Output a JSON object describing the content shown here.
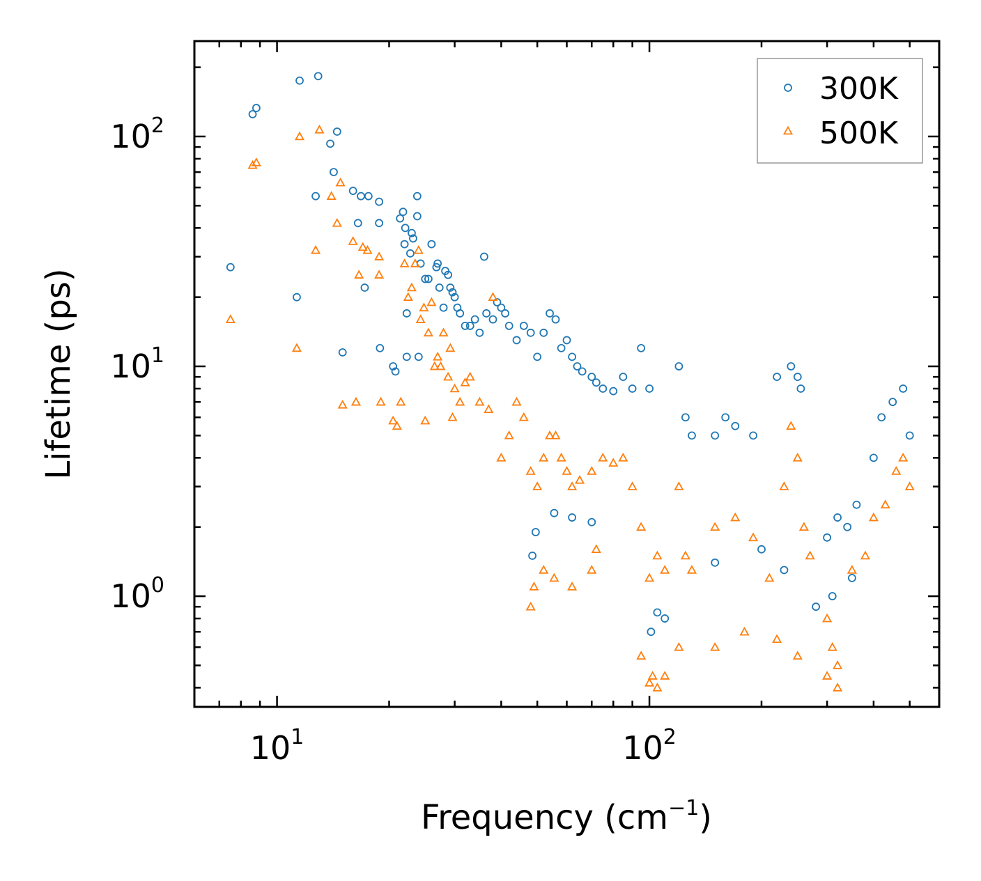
{
  "chart_data": {
    "type": "scatter",
    "title": "",
    "xlabel": "Frequency (cm",
    "xlabel_sup": "−1",
    "xlabel_suffix": ")",
    "ylabel": "Lifetime (ps)",
    "xscale": "log",
    "yscale": "log",
    "xlim": [
      6,
      600
    ],
    "ylim": [
      0.33,
      260
    ],
    "x_ticks": [
      {
        "value": 10,
        "base": "10",
        "exp": "1"
      },
      {
        "value": 100,
        "base": "10",
        "exp": "2"
      }
    ],
    "y_ticks": [
      {
        "value": 1,
        "base": "10",
        "exp": "0"
      },
      {
        "value": 10,
        "base": "10",
        "exp": "1"
      },
      {
        "value": 100,
        "base": "10",
        "exp": "2"
      }
    ],
    "legend_position": "top-right",
    "series": [
      {
        "name": "300K",
        "marker": "circle",
        "color": "#1f77b4",
        "points": [
          [
            7.5,
            27
          ],
          [
            8.6,
            125
          ],
          [
            8.8,
            133
          ],
          [
            11.5,
            175
          ],
          [
            12.9,
            183
          ],
          [
            13.9,
            93
          ],
          [
            14.2,
            70
          ],
          [
            14.5,
            105
          ],
          [
            11.3,
            20
          ],
          [
            12.7,
            55
          ],
          [
            15.0,
            11.5
          ],
          [
            16.0,
            58
          ],
          [
            16.5,
            42
          ],
          [
            16.8,
            55
          ],
          [
            17.2,
            22
          ],
          [
            17.6,
            55
          ],
          [
            18.8,
            52
          ],
          [
            18.8,
            42
          ],
          [
            18.9,
            12
          ],
          [
            20.5,
            10
          ],
          [
            20.8,
            9.5
          ],
          [
            21.4,
            44
          ],
          [
            21.8,
            47
          ],
          [
            22.1,
            40
          ],
          [
            22.0,
            34
          ],
          [
            22.3,
            17
          ],
          [
            22.3,
            11
          ],
          [
            22.8,
            31
          ],
          [
            23.0,
            38
          ],
          [
            23.2,
            36
          ],
          [
            23.8,
            55
          ],
          [
            23.8,
            45
          ],
          [
            24.0,
            11
          ],
          [
            24.3,
            28
          ],
          [
            25.0,
            24
          ],
          [
            25.5,
            24
          ],
          [
            26.0,
            34
          ],
          [
            26.8,
            27
          ],
          [
            27.0,
            28
          ],
          [
            27.3,
            22
          ],
          [
            28.0,
            18
          ],
          [
            28.3,
            26
          ],
          [
            28.8,
            25
          ],
          [
            29.2,
            22
          ],
          [
            29.6,
            21
          ],
          [
            30.0,
            20
          ],
          [
            30.5,
            18
          ],
          [
            31.0,
            17
          ],
          [
            32.0,
            15
          ],
          [
            33.0,
            15
          ],
          [
            34.0,
            16
          ],
          [
            35.0,
            14
          ],
          [
            36.0,
            30
          ],
          [
            36.5,
            17
          ],
          [
            38.0,
            16
          ],
          [
            39.0,
            19
          ],
          [
            40.0,
            18
          ],
          [
            41.0,
            17
          ],
          [
            42.0,
            15
          ],
          [
            44.0,
            13
          ],
          [
            46.0,
            15
          ],
          [
            48.0,
            14
          ],
          [
            50.0,
            11
          ],
          [
            52.0,
            14
          ],
          [
            54.0,
            17
          ],
          [
            56.0,
            16
          ],
          [
            58.0,
            12
          ],
          [
            60.0,
            13
          ],
          [
            62.0,
            11
          ],
          [
            64.0,
            10
          ],
          [
            66.0,
            9.5
          ],
          [
            70.0,
            9
          ],
          [
            72.0,
            8.5
          ],
          [
            75.0,
            8
          ],
          [
            80.0,
            7.8
          ],
          [
            85.0,
            9
          ],
          [
            90.0,
            8
          ],
          [
            95.0,
            12
          ],
          [
            100.0,
            8
          ],
          [
            120.0,
            10
          ],
          [
            125.0,
            6
          ],
          [
            130.0,
            5
          ],
          [
            150.0,
            5
          ],
          [
            160.0,
            6
          ],
          [
            170.0,
            5.5
          ],
          [
            190.0,
            5
          ],
          [
            220.0,
            9
          ],
          [
            240.0,
            10
          ],
          [
            250.0,
            9
          ],
          [
            255.0,
            8
          ],
          [
            300.0,
            1.8
          ],
          [
            320.0,
            2.2
          ],
          [
            340.0,
            2.0
          ],
          [
            360.0,
            2.5
          ],
          [
            400.0,
            4
          ],
          [
            420.0,
            6
          ],
          [
            450.0,
            7
          ],
          [
            480.0,
            8
          ],
          [
            500.0,
            5
          ],
          [
            48.5,
            1.5
          ],
          [
            49.5,
            1.9
          ],
          [
            55.5,
            2.3
          ],
          [
            62.0,
            2.2
          ],
          [
            70.0,
            2.1
          ],
          [
            101.0,
            0.7
          ],
          [
            105.0,
            0.85
          ],
          [
            110.0,
            0.8
          ],
          [
            150.0,
            1.4
          ],
          [
            200.0,
            1.6
          ],
          [
            230.0,
            1.3
          ],
          [
            280.0,
            0.9
          ],
          [
            310.0,
            1.0
          ],
          [
            350.0,
            1.2
          ]
        ]
      },
      {
        "name": "500K",
        "marker": "triangle",
        "color": "#ff7f0e",
        "points": [
          [
            7.5,
            16
          ],
          [
            8.6,
            75
          ],
          [
            8.8,
            77
          ],
          [
            11.3,
            12
          ],
          [
            11.5,
            100
          ],
          [
            12.7,
            32
          ],
          [
            13.0,
            107
          ],
          [
            14.0,
            55
          ],
          [
            14.5,
            42
          ],
          [
            14.8,
            63
          ],
          [
            15.0,
            6.8
          ],
          [
            16.0,
            35
          ],
          [
            16.3,
            7
          ],
          [
            16.6,
            25
          ],
          [
            17.0,
            33
          ],
          [
            17.5,
            32
          ],
          [
            18.8,
            30
          ],
          [
            18.8,
            25
          ],
          [
            19.0,
            7
          ],
          [
            20.5,
            5.8
          ],
          [
            21.0,
            5.5
          ],
          [
            21.5,
            7
          ],
          [
            22.0,
            28
          ],
          [
            22.5,
            20
          ],
          [
            23.0,
            22
          ],
          [
            23.5,
            28
          ],
          [
            24.0,
            32
          ],
          [
            24.3,
            16
          ],
          [
            24.8,
            18
          ],
          [
            25.0,
            5.8
          ],
          [
            25.5,
            14
          ],
          [
            26.0,
            19
          ],
          [
            26.5,
            10
          ],
          [
            27.0,
            11
          ],
          [
            27.5,
            10
          ],
          [
            28.0,
            14
          ],
          [
            28.8,
            9
          ],
          [
            29.2,
            12
          ],
          [
            29.6,
            6
          ],
          [
            30.0,
            8
          ],
          [
            31.0,
            7
          ],
          [
            32.0,
            8.5
          ],
          [
            33.0,
            9
          ],
          [
            35.0,
            7
          ],
          [
            37.0,
            6.5
          ],
          [
            38.0,
            20
          ],
          [
            40.0,
            4
          ],
          [
            42.0,
            5
          ],
          [
            44.0,
            7
          ],
          [
            46.0,
            6
          ],
          [
            48.0,
            3.5
          ],
          [
            50.0,
            3
          ],
          [
            52.0,
            4
          ],
          [
            54.0,
            5
          ],
          [
            56.0,
            5
          ],
          [
            58.0,
            4
          ],
          [
            60.0,
            3.5
          ],
          [
            62.0,
            3
          ],
          [
            65.0,
            3.2
          ],
          [
            70.0,
            3.5
          ],
          [
            75.0,
            4
          ],
          [
            80.0,
            3.8
          ],
          [
            85.0,
            4
          ],
          [
            90.0,
            3
          ],
          [
            95.0,
            2
          ],
          [
            100.0,
            1.2
          ],
          [
            105.0,
            1.5
          ],
          [
            110.0,
            1.3
          ],
          [
            120.0,
            3
          ],
          [
            125.0,
            1.5
          ],
          [
            130.0,
            1.3
          ],
          [
            150.0,
            2
          ],
          [
            170.0,
            2.2
          ],
          [
            190.0,
            1.8
          ],
          [
            210.0,
            1.2
          ],
          [
            230.0,
            3
          ],
          [
            240.0,
            5.5
          ],
          [
            250.0,
            4
          ],
          [
            260.0,
            2
          ],
          [
            270.0,
            1.5
          ],
          [
            300.0,
            0.8
          ],
          [
            310.0,
            0.6
          ],
          [
            320.0,
            0.5
          ],
          [
            350.0,
            1.3
          ],
          [
            380.0,
            1.5
          ],
          [
            400.0,
            2.2
          ],
          [
            430.0,
            2.5
          ],
          [
            460.0,
            3.5
          ],
          [
            480.0,
            4
          ],
          [
            500.0,
            3
          ],
          [
            48.0,
            0.9
          ],
          [
            49.0,
            1.1
          ],
          [
            52.0,
            1.3
          ],
          [
            55.5,
            1.2
          ],
          [
            62.0,
            1.1
          ],
          [
            70.0,
            1.3
          ],
          [
            72.0,
            1.6
          ],
          [
            95.0,
            0.55
          ],
          [
            100.0,
            0.42
          ],
          [
            102.0,
            0.45
          ],
          [
            105.0,
            0.4
          ],
          [
            110.0,
            0.45
          ],
          [
            120.0,
            0.6
          ],
          [
            150.0,
            0.6
          ],
          [
            180.0,
            0.7
          ],
          [
            220.0,
            0.65
          ],
          [
            250.0,
            0.55
          ],
          [
            300.0,
            0.45
          ],
          [
            320.0,
            0.4
          ]
        ]
      }
    ]
  }
}
